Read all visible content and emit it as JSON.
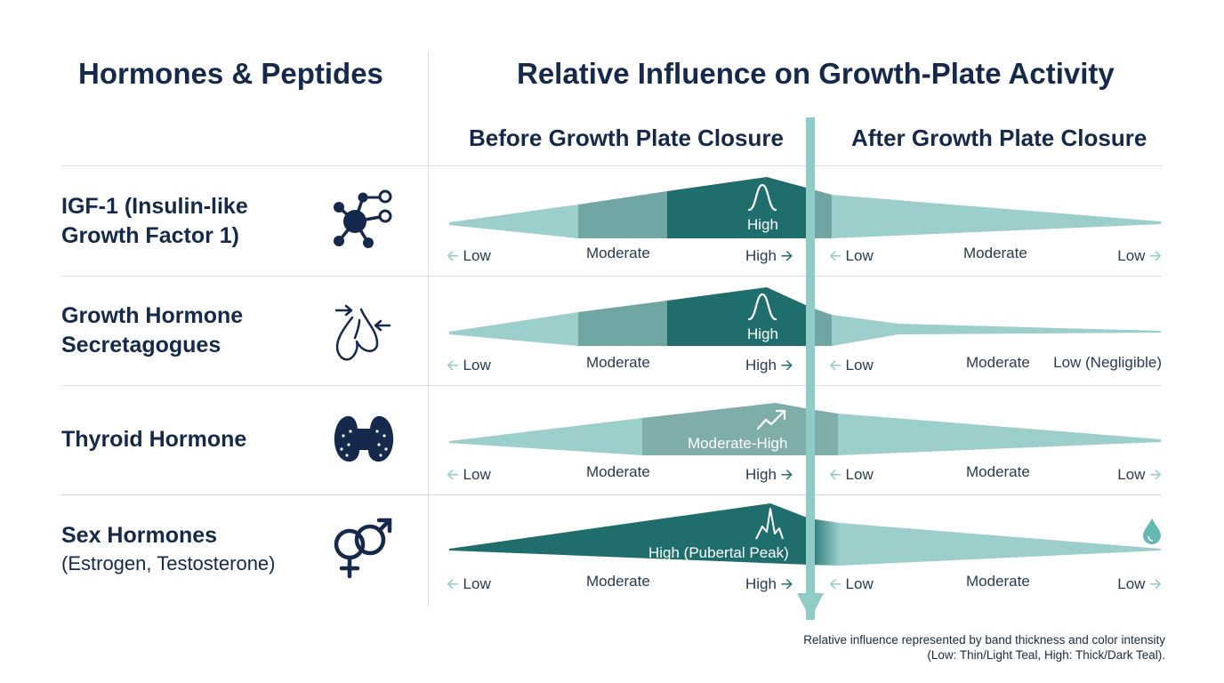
{
  "header": {
    "left_title": "Hormones & Peptides",
    "right_title": "Relative Influence on Growth-Plate Activity",
    "before_label": "Before Growth Plate Closure",
    "after_label": "After Growth Plate Closure"
  },
  "rows": [
    {
      "name_line1": "IGF-1 (Insulin-like",
      "name_line2": "Growth Factor 1)",
      "icon": "molecule-icon",
      "band_label": "High",
      "band_icon": "bell-curve-icon",
      "before_ticks": [
        "Low",
        "Moderate",
        "High"
      ],
      "after_ticks": [
        "Low",
        "Moderate",
        "Low"
      ]
    },
    {
      "name_line1": "Growth Hormone",
      "name_line2": "Secretagogues",
      "icon": "pituitary-icon",
      "band_label": "High",
      "band_icon": "bell-curve-icon",
      "before_ticks": [
        "Low",
        "Moderate",
        "High"
      ],
      "after_ticks": [
        "Low",
        "Moderate",
        "Low (Negligible)"
      ]
    },
    {
      "name_line1": "Thyroid Hormone",
      "icon": "thyroid-icon",
      "band_label": "Moderate-High",
      "band_icon": "trend-up-icon",
      "before_ticks": [
        "Low",
        "Moderate",
        "High"
      ],
      "after_ticks": [
        "Low",
        "Moderate",
        "Low"
      ]
    },
    {
      "name_line1": "Sex Hormones",
      "name_line2": "(Estrogen, Testosterone)",
      "icon": "gender-symbols-icon",
      "band_label": "High (Pubertal Peak)",
      "band_icon": "peak-icon",
      "after_icon": "drop-icon",
      "before_ticks": [
        "Low",
        "Moderate",
        "High"
      ],
      "after_ticks": [
        "Low",
        "Moderate",
        "Low"
      ]
    }
  ],
  "footnote": {
    "line1": "Relative influence represented by band thickness and color intensity",
    "line2": "(Low: Thin/Light Teal, High: Thick/Dark Teal)."
  },
  "colors": {
    "navy": "#14294b",
    "light_teal": "#9ccfcb",
    "mid_teal": "#6fa6a3",
    "dark_teal": "#1f6e6d",
    "closure_line": "#8fcbc7",
    "divider": "#d9dde2"
  }
}
